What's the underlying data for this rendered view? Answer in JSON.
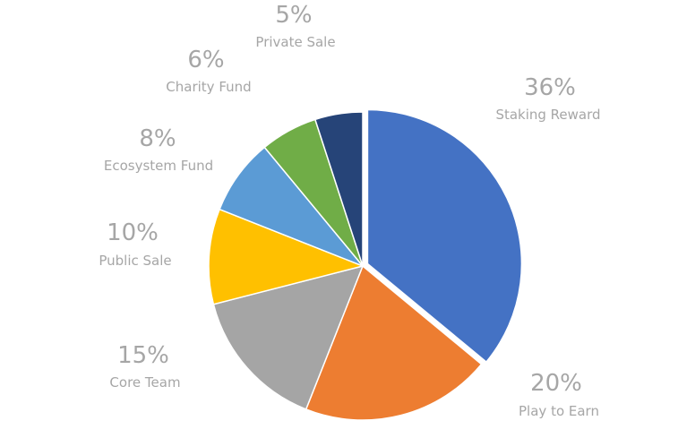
{
  "chart_data": {
    "type": "pie",
    "start_angle_deg": 0,
    "direction": "clockwise",
    "slices": [
      {
        "label": "Staking Reward",
        "value": 36,
        "value_label": "36%",
        "color": "#4472c4",
        "exploded": true
      },
      {
        "label": "Play to Earn",
        "value": 20,
        "value_label": "20%",
        "color": "#ed7d31",
        "exploded": false
      },
      {
        "label": "Core Team",
        "value": 15,
        "value_label": "15%",
        "color": "#a5a5a5",
        "exploded": false
      },
      {
        "label": "Public Sale",
        "value": 10,
        "value_label": "10%",
        "color": "#ffc000",
        "exploded": false
      },
      {
        "label": "Ecosystem Fund",
        "value": 8,
        "value_label": "8%",
        "color": "#5b9bd5",
        "exploded": false
      },
      {
        "label": "Charity Fund",
        "value": 6,
        "value_label": "6%",
        "color": "#70ad47",
        "exploded": false
      },
      {
        "label": "Private Sale",
        "value": 5,
        "value_label": "5%",
        "color": "#264478",
        "exploded": false
      }
    ],
    "label_color": "#a6a6a6"
  }
}
